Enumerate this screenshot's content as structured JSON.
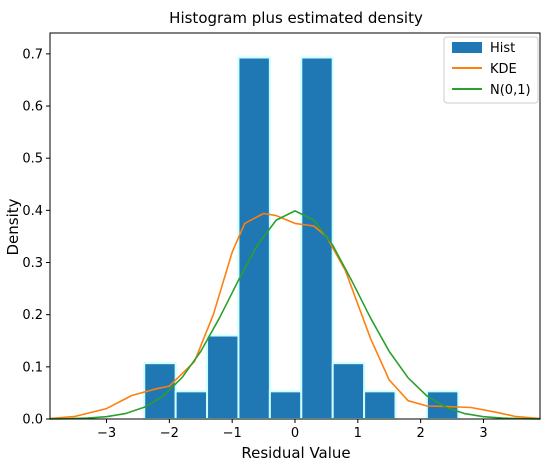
{
  "chart_data": {
    "type": "bar",
    "title": "Histogram plus estimated density",
    "xlabel": "Residual Value",
    "ylabel": "Density",
    "xlim": [
      -3.9,
      3.9
    ],
    "ylim": [
      0,
      0.74
    ],
    "xticks": [
      -3,
      -2,
      -1,
      0,
      1,
      2,
      3
    ],
    "yticks": [
      0.0,
      0.1,
      0.2,
      0.3,
      0.4,
      0.5,
      0.6,
      0.7
    ],
    "xtick_labels": [
      "−3",
      "−2",
      "−1",
      "0",
      "1",
      "2",
      "3"
    ],
    "ytick_labels": [
      "0.0",
      "0.1",
      "0.2",
      "0.3",
      "0.4",
      "0.5",
      "0.6",
      "0.7"
    ],
    "grid": false,
    "legend_position": "top-right",
    "histogram": {
      "name": "Hist",
      "color": "#1f77b4",
      "edge_color": "#ccffff",
      "bins": [
        {
          "x0": -2.4,
          "x1": -1.9,
          "value": 0.107
        },
        {
          "x0": -1.9,
          "x1": -1.4,
          "value": 0.053
        },
        {
          "x0": -1.4,
          "x1": -0.9,
          "value": 0.16
        },
        {
          "x0": -0.9,
          "x1": -0.4,
          "value": 0.693
        },
        {
          "x0": -0.4,
          "x1": 0.1,
          "value": 0.053
        },
        {
          "x0": 0.1,
          "x1": 0.6,
          "value": 0.693
        },
        {
          "x0": 0.6,
          "x1": 1.1,
          "value": 0.107
        },
        {
          "x0": 1.1,
          "x1": 1.6,
          "value": 0.053
        },
        {
          "x0": 1.6,
          "x1": 2.1,
          "value": 0.0
        },
        {
          "x0": 2.1,
          "x1": 2.6,
          "value": 0.053
        }
      ]
    },
    "series": [
      {
        "name": "KDE",
        "color": "#ff7f0e",
        "x": [
          -3.9,
          -3.5,
          -3.0,
          -2.6,
          -2.2,
          -2.0,
          -1.6,
          -1.3,
          -1.0,
          -0.8,
          -0.5,
          -0.3,
          0.0,
          0.3,
          0.5,
          0.8,
          1.2,
          1.5,
          1.8,
          2.1,
          2.4,
          2.8,
          3.2,
          3.5,
          3.9
        ],
        "y": [
          0.001,
          0.005,
          0.02,
          0.045,
          0.058,
          0.063,
          0.11,
          0.2,
          0.32,
          0.375,
          0.394,
          0.39,
          0.375,
          0.37,
          0.35,
          0.285,
          0.155,
          0.075,
          0.035,
          0.025,
          0.024,
          0.022,
          0.013,
          0.005,
          0.001
        ]
      },
      {
        "name": "N(0,1)",
        "color": "#2ca02c",
        "x": [
          -3.9,
          -3.6,
          -3.3,
          -3.0,
          -2.7,
          -2.4,
          -2.1,
          -1.8,
          -1.5,
          -1.2,
          -0.9,
          -0.6,
          -0.3,
          0.0,
          0.3,
          0.6,
          0.9,
          1.2,
          1.5,
          1.8,
          2.1,
          2.4,
          2.7,
          3.0,
          3.3,
          3.6,
          3.9
        ],
        "y": [
          0.0002,
          0.0006,
          0.0017,
          0.0044,
          0.0104,
          0.0224,
          0.044,
          0.079,
          0.1295,
          0.1942,
          0.2661,
          0.3332,
          0.3814,
          0.3989,
          0.3814,
          0.3332,
          0.2661,
          0.1942,
          0.1295,
          0.079,
          0.044,
          0.0224,
          0.0104,
          0.0044,
          0.0017,
          0.0006,
          0.0002
        ]
      }
    ]
  }
}
